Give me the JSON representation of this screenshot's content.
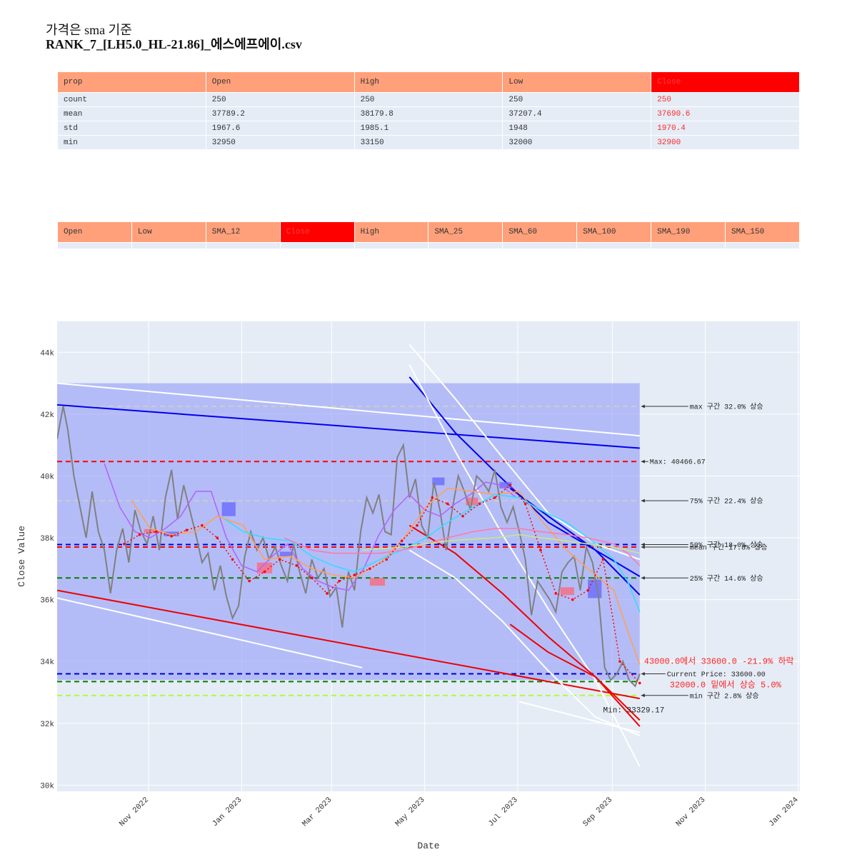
{
  "title": {
    "line1": "가격은 sma 기준",
    "line2": "RANK_7_[LH5.0_HL-21.86]_에스에프에이.csv"
  },
  "table1": {
    "headers": [
      "prop",
      "Open",
      "High",
      "Low",
      "Close"
    ],
    "rows": [
      [
        "count",
        "250",
        "250",
        "250",
        "250"
      ],
      [
        "mean",
        "37789.2",
        "38179.8",
        "37207.4",
        "37690.6"
      ],
      [
        "std",
        "1967.6",
        "1985.1",
        "1948",
        "1970.4"
      ],
      [
        "min",
        "32950",
        "33150",
        "32000",
        "32900"
      ]
    ]
  },
  "table2": {
    "headers": [
      "Open",
      "Low",
      "SMA_12",
      "Close",
      "High",
      "SMA_25",
      "SMA_60",
      "SMA_100",
      "SMA_190",
      "SMA_150"
    ]
  },
  "colors": {
    "header": "#FFA07A",
    "header_highlight": "#FF0000",
    "cell": "#E5ECF6",
    "plot_bg": "#E5ECF6",
    "band": "#A0A8F8",
    "close": "#808080",
    "sma12": "#B266FF",
    "sma25": "#FFA057",
    "sma60": "#33DDFF",
    "sma100": "#FF7AAA",
    "sma150": "#C8E880",
    "dotted_red": "#FF0000"
  },
  "chart_data": {
    "type": "line",
    "xlabel": "Date",
    "ylabel": "Close Value",
    "ylim": [
      29800,
      45000
    ],
    "yticks": [
      30000,
      32000,
      34000,
      36000,
      38000,
      40000,
      42000,
      44000
    ],
    "ytick_labels": [
      "30k",
      "32k",
      "34k",
      "36k",
      "38k",
      "40k",
      "42k",
      "44k"
    ],
    "xlim": [
      "2022-09-01",
      "2024-01-01"
    ],
    "xtick_dates": [
      "2022-10-31",
      "2022-12-31",
      "2023-02-28",
      "2023-04-30",
      "2023-06-30",
      "2023-08-31",
      "2023-10-31",
      "2023-12-31"
    ],
    "xtick_labels": [
      "Nov 2022",
      "Jan 2023",
      "Mar 2023",
      "May 2023",
      "Jul 2023",
      "Sep 2023",
      "Nov 2023",
      "Jan 2024"
    ],
    "grid": true,
    "band_range": {
      "x": [
        "2022-09-01",
        "2023-09-18"
      ],
      "y": [
        33400,
        43000
      ]
    },
    "hlines": [
      {
        "y": 40466.67,
        "color": "#FF0000",
        "dash": true,
        "label": "Max: 40466.67"
      },
      {
        "y": 42250,
        "color": "#CCCCCC",
        "dash": true,
        "label": "max 구간 32.0% 상승"
      },
      {
        "y": 39200,
        "color": "#CCCCCC",
        "dash": true,
        "label": "75% 구간 22.4% 상승"
      },
      {
        "y": 37780,
        "color": "#0000CC",
        "dash": true,
        "label": "50% 구간 18.0% 상승"
      },
      {
        "y": 37700,
        "color": "#FF0000",
        "dash": true,
        "label": "mean 구간 17.8% 상승"
      },
      {
        "y": 36700,
        "color": "#008000",
        "dash": true,
        "label": "25% 구간 14.6% 상승"
      },
      {
        "y": 33600,
        "color": "#0000CC",
        "dash": true,
        "label": "Current Price: 33600.00"
      },
      {
        "y": 33350,
        "color": "#008000",
        "dash": true,
        "label": ""
      },
      {
        "y": 32900,
        "color": "#ADFF2F",
        "dash": true,
        "label": "min 구간 2.8% 상승"
      }
    ],
    "annotations": {
      "drop": "43000.0에서 33600.0 -21.9% 하락",
      "rise": "32000.0 밑에서 상승 5.0%",
      "min": "Min: 33329.17"
    },
    "trend_lines": [
      {
        "name": "",
        "color": "#FFFFFF",
        "x": [
          "2022-09-01",
          "2023-09-18"
        ],
        "y": [
          43000,
          41300
        ]
      },
      {
        "name": "",
        "color": "#0000EE",
        "x": [
          "2022-09-01",
          "2023-09-18"
        ],
        "y": [
          42300,
          40900
        ]
      },
      {
        "name": "",
        "color": "#EE0000",
        "x": [
          "2022-09-01",
          "2023-09-18"
        ],
        "y": [
          36300,
          32800
        ]
      },
      {
        "name": "",
        "color": "#FFFFFF",
        "x": [
          "2022-09-01",
          "2023-03-20"
        ],
        "y": [
          36050,
          33800
        ]
      },
      {
        "name": "",
        "color": "#FFFFFF",
        "x": [
          "2023-07-01",
          "2023-09-18"
        ],
        "y": [
          32700,
          31700
        ]
      }
    ],
    "channels": [
      {
        "color": "#FFFFFF",
        "x": [
          "2023-04-20",
          "2023-05-20",
          "2023-06-20",
          "2023-07-20",
          "2023-08-20",
          "2023-09-18"
        ],
        "y": [
          44250,
          42500,
          40600,
          38800,
          37800,
          37300
        ]
      },
      {
        "color": "#0000EE",
        "x": [
          "2023-04-20",
          "2023-05-20",
          "2023-06-20",
          "2023-07-20",
          "2023-08-20",
          "2023-09-18"
        ],
        "y": [
          43200,
          41400,
          39900,
          38500,
          37600,
          36750
        ]
      },
      {
        "color": "#0000EE",
        "x": [
          "2023-06-25",
          "2023-07-20",
          "2023-08-20",
          "2023-09-18"
        ],
        "y": [
          39600,
          38700,
          37600,
          36150
        ]
      },
      {
        "color": "#FFFFFF",
        "x": [
          "2023-04-20",
          "2023-05-20",
          "2023-06-20",
          "2023-07-20",
          "2023-08-20",
          "2023-09-18"
        ],
        "y": [
          43600,
          40800,
          38100,
          35700,
          33400,
          30600
        ]
      },
      {
        "color": "#FFFFFF",
        "x": [
          "2023-04-20",
          "2023-05-20",
          "2023-06-20",
          "2023-07-20",
          "2023-08-20",
          "2023-09-18"
        ],
        "y": [
          37600,
          36700,
          35300,
          33700,
          32200,
          31600
        ]
      },
      {
        "color": "#EE0000",
        "x": [
          "2023-04-20",
          "2023-05-20",
          "2023-06-20",
          "2023-07-20",
          "2023-08-20",
          "2023-09-18"
        ],
        "y": [
          38400,
          37500,
          36200,
          34800,
          33500,
          31900
        ]
      },
      {
        "color": "#EE0000",
        "x": [
          "2023-06-25",
          "2023-07-20",
          "2023-08-20",
          "2023-09-18"
        ],
        "y": [
          35200,
          34300,
          33500,
          32100
        ]
      }
    ],
    "rects": [
      {
        "color": "#6666FF",
        "x": [
          "2022-12-18",
          "2022-12-27"
        ],
        "y": [
          38700,
          39150
        ]
      },
      {
        "color": "#6666FF",
        "x": [
          "2022-11-10",
          "2022-11-20"
        ],
        "y": [
          38050,
          38200
        ]
      },
      {
        "color": "#FF6677",
        "x": [
          "2022-10-28",
          "2022-11-05"
        ],
        "y": [
          38150,
          38280
        ]
      },
      {
        "color": "#FF6677",
        "x": [
          "2023-01-10",
          "2023-01-20"
        ],
        "y": [
          36850,
          37200
        ]
      },
      {
        "color": "#6666FF",
        "x": [
          "2023-01-25",
          "2023-02-02"
        ],
        "y": [
          37400,
          37550
        ]
      },
      {
        "color": "#FF6677",
        "x": [
          "2023-03-25",
          "2023-04-04"
        ],
        "y": [
          36450,
          36700
        ]
      },
      {
        "color": "#6666FF",
        "x": [
          "2023-05-05",
          "2023-05-13"
        ],
        "y": [
          39700,
          39950
        ]
      },
      {
        "color": "#FF6677",
        "x": [
          "2023-05-27",
          "2023-06-04"
        ],
        "y": [
          39050,
          39300
        ]
      },
      {
        "color": "#6666FF",
        "x": [
          "2023-06-18",
          "2023-06-26"
        ],
        "y": [
          39600,
          39800
        ]
      },
      {
        "color": "#FF6677",
        "x": [
          "2023-07-28",
          "2023-08-06"
        ],
        "y": [
          36150,
          36400
        ]
      },
      {
        "color": "#6666FF",
        "x": [
          "2023-08-15",
          "2023-08-24"
        ],
        "y": [
          36050,
          36650
        ]
      }
    ],
    "series": [
      {
        "name": "Close",
        "color": "#808080",
        "x": [
          "2022-09-01",
          "2022-09-05",
          "2022-09-08",
          "2022-09-12",
          "2022-09-16",
          "2022-09-20",
          "2022-09-24",
          "2022-09-28",
          "2022-10-02",
          "2022-10-06",
          "2022-10-10",
          "2022-10-14",
          "2022-10-18",
          "2022-10-22",
          "2022-10-26",
          "2022-10-30",
          "2022-11-03",
          "2022-11-07",
          "2022-11-11",
          "2022-11-15",
          "2022-11-19",
          "2022-11-23",
          "2022-11-27",
          "2022-12-01",
          "2022-12-05",
          "2022-12-09",
          "2022-12-13",
          "2022-12-17",
          "2022-12-21",
          "2022-12-25",
          "2022-12-29",
          "2023-01-02",
          "2023-01-06",
          "2023-01-10",
          "2023-01-14",
          "2023-01-18",
          "2023-01-22",
          "2023-01-26",
          "2023-01-30",
          "2023-02-03",
          "2023-02-07",
          "2023-02-11",
          "2023-02-15",
          "2023-02-19",
          "2023-02-23",
          "2023-02-27",
          "2023-03-03",
          "2023-03-07",
          "2023-03-11",
          "2023-03-15",
          "2023-03-19",
          "2023-03-23",
          "2023-03-27",
          "2023-03-31",
          "2023-04-04",
          "2023-04-08",
          "2023-04-12",
          "2023-04-16",
          "2023-04-20",
          "2023-04-24",
          "2023-04-28",
          "2023-05-02",
          "2023-05-06",
          "2023-05-10",
          "2023-05-14",
          "2023-05-18",
          "2023-05-22",
          "2023-05-26",
          "2023-05-30",
          "2023-06-03",
          "2023-06-07",
          "2023-06-11",
          "2023-06-15",
          "2023-06-19",
          "2023-06-23",
          "2023-06-27",
          "2023-07-01",
          "2023-07-05",
          "2023-07-09",
          "2023-07-13",
          "2023-07-17",
          "2023-07-21",
          "2023-07-25",
          "2023-07-29",
          "2023-08-02",
          "2023-08-06",
          "2023-08-10",
          "2023-08-14",
          "2023-08-18",
          "2023-08-22",
          "2023-08-26",
          "2023-08-30",
          "2023-09-03",
          "2023-09-07",
          "2023-09-11",
          "2023-09-15",
          "2023-09-18"
        ],
        "y": [
          41200,
          42250,
          41500,
          40000,
          39000,
          38000,
          39500,
          38200,
          37600,
          36200,
          37600,
          38300,
          37200,
          38900,
          38200,
          37800,
          38700,
          37600,
          39300,
          40200,
          38600,
          39700,
          38900,
          38100,
          37200,
          37500,
          36300,
          37100,
          36100,
          35400,
          35800,
          37400,
          38200,
          37600,
          38000,
          37300,
          37700,
          37100,
          36600,
          37800,
          36900,
          36200,
          37300,
          36700,
          37000,
          36100,
          36400,
          35100,
          36900,
          36300,
          38200,
          39300,
          38800,
          39400,
          38200,
          38100,
          40600,
          41000,
          39300,
          39900,
          38400,
          38000,
          39800,
          38900,
          37600,
          38900,
          40000,
          39500,
          38900,
          40000,
          39800,
          39500,
          40200,
          39000,
          38500,
          39000,
          38200,
          37300,
          35500,
          36600,
          36300,
          36000,
          35600,
          36900,
          37200,
          37400,
          36300,
          37700,
          37200,
          36100,
          33800,
          33400,
          33600,
          34000,
          33400,
          33200,
          33600
        ]
      },
      {
        "name": "SMA_12",
        "color": "#B266FF",
        "x": [
          "2022-10-02",
          "2022-10-12",
          "2022-10-22",
          "2022-11-01",
          "2022-11-11",
          "2022-11-21",
          "2022-12-01",
          "2022-12-11",
          "2022-12-21",
          "2022-12-31",
          "2023-01-10",
          "2023-01-20",
          "2023-01-30",
          "2023-02-09",
          "2023-02-19",
          "2023-03-01",
          "2023-03-11",
          "2023-03-21",
          "2023-03-31",
          "2023-04-10",
          "2023-04-20",
          "2023-04-30",
          "2023-05-10",
          "2023-05-20",
          "2023-05-30",
          "2023-06-09",
          "2023-06-19",
          "2023-06-29"
        ],
        "y": [
          40400,
          39000,
          38200,
          38000,
          38300,
          38700,
          39500,
          39500,
          38000,
          37100,
          36900,
          37400,
          37800,
          37000,
          36600,
          36400,
          36300,
          37000,
          38100,
          38900,
          39400,
          38900,
          38700,
          39100,
          39400,
          39800,
          39700,
          39300
        ]
      },
      {
        "name": "SMA_25",
        "color": "#FFA057",
        "x": [
          "2022-10-20",
          "2022-11-01",
          "2022-11-15",
          "2022-12-01",
          "2022-12-15",
          "2023-01-01",
          "2023-01-15",
          "2023-02-01",
          "2023-02-15",
          "2023-03-01",
          "2023-03-15",
          "2023-04-01",
          "2023-04-15",
          "2023-05-01",
          "2023-05-15",
          "2023-06-01",
          "2023-06-15",
          "2023-07-01",
          "2023-07-15",
          "2023-08-01",
          "2023-08-15",
          "2023-09-01",
          "2023-09-10",
          "2023-09-18"
        ],
        "y": [
          39200,
          38300,
          38100,
          38200,
          38700,
          38400,
          37300,
          37400,
          37000,
          36800,
          36700,
          37200,
          37900,
          39000,
          39600,
          39500,
          39400,
          39500,
          38600,
          37600,
          37000,
          36300,
          35000,
          33900
        ]
      },
      {
        "name": "SMA_60",
        "color": "#33DDFF",
        "x": [
          "2022-12-20",
          "2023-01-01",
          "2023-01-15",
          "2023-02-01",
          "2023-02-15",
          "2023-03-01",
          "2023-03-15",
          "2023-04-01",
          "2023-04-15",
          "2023-05-01",
          "2023-05-15",
          "2023-06-01",
          "2023-06-15",
          "2023-07-01",
          "2023-07-15",
          "2023-08-01",
          "2023-08-15",
          "2023-09-01",
          "2023-09-10",
          "2023-09-18"
        ],
        "y": [
          38600,
          38200,
          38000,
          37900,
          37400,
          37100,
          36900,
          37300,
          37600,
          38000,
          38500,
          39000,
          39400,
          39300,
          38900,
          38500,
          38000,
          37300,
          36600,
          35600
        ]
      },
      {
        "name": "SMA_100",
        "color": "#FF7AAA",
        "x": [
          "2023-01-28",
          "2023-02-15",
          "2023-03-01",
          "2023-03-15",
          "2023-04-01",
          "2023-04-15",
          "2023-05-01",
          "2023-05-15",
          "2023-06-01",
          "2023-06-15",
          "2023-07-01",
          "2023-07-15",
          "2023-08-01",
          "2023-08-15",
          "2023-09-01",
          "2023-09-10",
          "2023-09-18"
        ],
        "y": [
          38000,
          37600,
          37500,
          37500,
          37500,
          37600,
          37800,
          38000,
          38200,
          38300,
          38300,
          38200,
          38100,
          38000,
          37800,
          37500,
          37100
        ]
      },
      {
        "name": "SMA_150",
        "color": "#C8E880",
        "x": [
          "2023-03-20",
          "2023-04-15",
          "2023-05-15",
          "2023-06-15",
          "2023-07-01",
          "2023-07-15",
          "2023-08-01",
          "2023-08-15",
          "2023-09-01",
          "2023-09-18"
        ],
        "y": [
          37600,
          37700,
          37900,
          38000,
          38100,
          38000,
          37900,
          37800,
          37700,
          37500
        ]
      },
      {
        "name": "",
        "color": "#FF0000",
        "dotted": true,
        "x": [
          "2022-10-15",
          "2022-10-25",
          "2022-11-05",
          "2022-11-15",
          "2022-11-25",
          "2022-12-05",
          "2022-12-15",
          "2022-12-25",
          "2023-01-05",
          "2023-01-15",
          "2023-01-25",
          "2023-02-05",
          "2023-02-15",
          "2023-02-25",
          "2023-03-05",
          "2023-03-15",
          "2023-03-25",
          "2023-04-05",
          "2023-04-15",
          "2023-04-25",
          "2023-05-05",
          "2023-05-15",
          "2023-05-25",
          "2023-06-05",
          "2023-06-15",
          "2023-06-25",
          "2023-07-05",
          "2023-07-15",
          "2023-07-25",
          "2023-08-05",
          "2023-08-15",
          "2023-08-25",
          "2023-09-05",
          "2023-09-18"
        ],
        "y": [
          37800,
          38100,
          38200,
          38050,
          38250,
          38400,
          38000,
          37300,
          36600,
          36900,
          37300,
          37100,
          36700,
          36200,
          36600,
          36800,
          37000,
          37300,
          37900,
          38400,
          39300,
          39100,
          38700,
          39100,
          39300,
          39700,
          39100,
          37600,
          36200,
          36000,
          36300,
          37300,
          34000,
          33300
        ]
      }
    ]
  }
}
